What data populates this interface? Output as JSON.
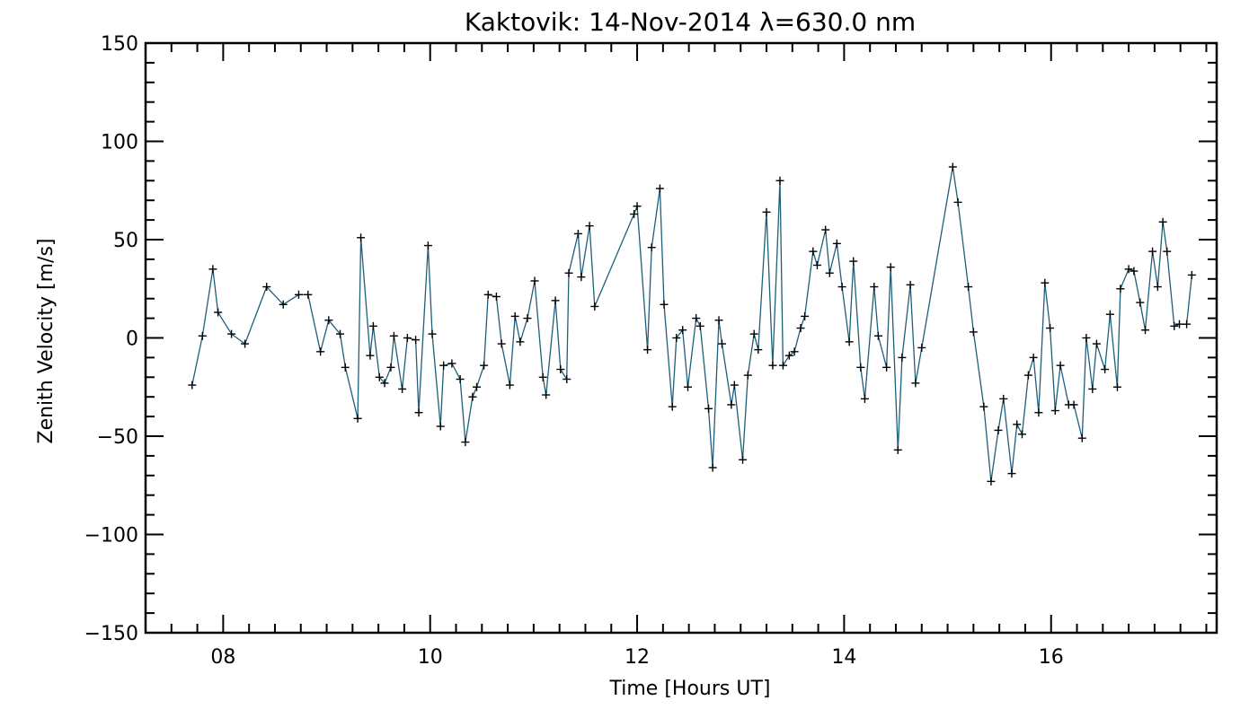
{
  "chart_data": {
    "type": "line",
    "title": "Kaktovik: 14-Nov-2014 λ=630.0 nm",
    "xlabel": "Time [Hours UT]",
    "ylabel": "Zenith Velocity [m/s]",
    "xlim": [
      7.25,
      17.6
    ],
    "ylim": [
      -150,
      150
    ],
    "xticks": [
      8,
      10,
      12,
      14,
      16
    ],
    "xtick_labels": [
      "08",
      "10",
      "12",
      "14",
      "16"
    ],
    "yticks": [
      -150,
      -100,
      -50,
      0,
      50,
      100,
      150
    ],
    "ytick_labels": [
      "−150",
      "−100",
      "−50",
      "0",
      "50",
      "100",
      "150"
    ],
    "grid": false,
    "marker": "plus",
    "colors": {
      "line": "#1f5f7a",
      "marker": "#000000",
      "axis": "#000000"
    },
    "series": [
      {
        "x": [
          7.7,
          7.8,
          7.9,
          7.95,
          8.08,
          8.21,
          8.42,
          8.58,
          8.73,
          8.82,
          8.94,
          9.02,
          9.13,
          9.18,
          9.3,
          9.33,
          9.42,
          9.45,
          9.51,
          9.56,
          9.62,
          9.65,
          9.73,
          9.78,
          9.86,
          9.89,
          9.98,
          10.02,
          10.1,
          10.13,
          10.21,
          10.29,
          10.34,
          10.41,
          10.45,
          10.52,
          10.56,
          10.64,
          10.69,
          10.77,
          10.82,
          10.87,
          10.94,
          11.01,
          11.09,
          11.12,
          11.21,
          11.26,
          11.32,
          11.34,
          11.43,
          11.46,
          11.54,
          11.59,
          11.97,
          12.0,
          12.1,
          12.14,
          12.22,
          12.26,
          12.34,
          12.38,
          12.44,
          12.49,
          12.57,
          12.61,
          12.69,
          12.73,
          12.79,
          12.82,
          12.91,
          12.94,
          13.02,
          13.07,
          13.13,
          13.17,
          13.25,
          13.31,
          13.38,
          13.41,
          13.47,
          13.52,
          13.58,
          13.62,
          13.7,
          13.74,
          13.82,
          13.86,
          13.93,
          13.98,
          14.05,
          14.09,
          14.16,
          14.2,
          14.29,
          14.33,
          14.41,
          14.45,
          14.52,
          14.56,
          14.64,
          14.69,
          14.75,
          15.05,
          15.1,
          15.2,
          15.25,
          15.35,
          15.42,
          15.49,
          15.54,
          15.62,
          15.67,
          15.72,
          15.78,
          15.83,
          15.88,
          15.94,
          15.99,
          16.04,
          16.09,
          16.17,
          16.22,
          16.3,
          16.34,
          16.4,
          16.44,
          16.52,
          16.57,
          16.64,
          16.67,
          16.75,
          16.8,
          16.86,
          16.91,
          16.98,
          17.03,
          17.08,
          17.12,
          17.19,
          17.24,
          17.31,
          17.36
        ],
        "values": [
          -24,
          1,
          35,
          13,
          2,
          -3,
          26,
          17,
          22,
          22,
          -7,
          9,
          2,
          -15,
          -41,
          51,
          -9,
          6,
          -20,
          -23,
          -15,
          1,
          -26,
          0,
          -1,
          -38,
          47,
          2,
          -45,
          -14,
          -13,
          -21,
          -53,
          -30,
          -25,
          -14,
          22,
          21,
          -3,
          -24,
          11,
          -2,
          10,
          29,
          -20,
          -29,
          19,
          -16,
          -21,
          33,
          53,
          31,
          57,
          16,
          63,
          67,
          -6,
          46,
          76,
          17,
          -35,
          0,
          4,
          -25,
          10,
          6,
          -36,
          -66,
          9,
          -3,
          -34,
          -24,
          -62,
          -19,
          2,
          -6,
          64,
          -14,
          80,
          -14,
          -9,
          -7,
          5,
          11,
          44,
          37,
          55,
          33,
          48,
          26,
          -2,
          39,
          -15,
          -31,
          26,
          1,
          -15,
          36,
          -57,
          -10,
          27,
          -23,
          -5,
          87,
          69,
          26,
          3,
          -35,
          -73,
          -47,
          -31,
          -69,
          -44,
          -49,
          -19,
          -10,
          -38,
          28,
          5,
          -37,
          -14,
          -34,
          -34,
          -51,
          0,
          -26,
          -3,
          -16,
          12,
          -25,
          25,
          35,
          34,
          18,
          4,
          44,
          26,
          59,
          44,
          6,
          7,
          7,
          32
        ]
      }
    ]
  }
}
